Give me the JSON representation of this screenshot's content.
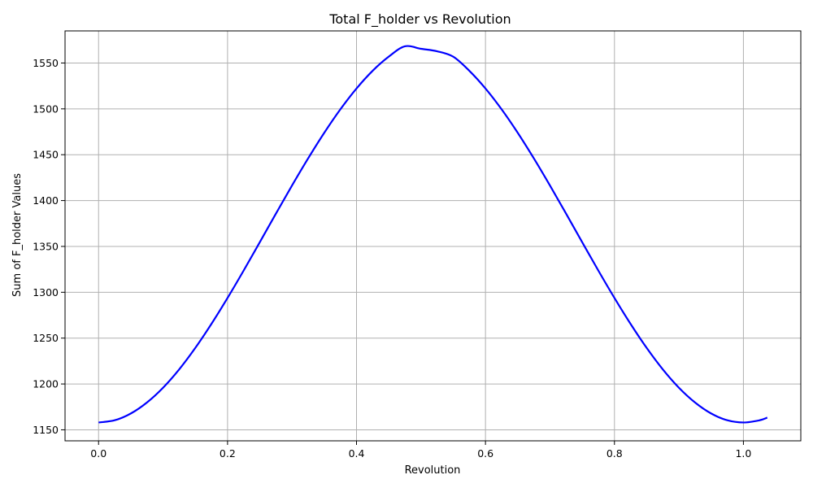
{
  "chart_data": {
    "type": "line",
    "title": "Total F_holder vs Revolution",
    "xlabel": "Revolution",
    "ylabel": "Sum of F_holder Values",
    "xlim": [
      -0.052,
      1.089
    ],
    "ylim": [
      1138,
      1585
    ],
    "xticks": [
      0.0,
      0.2,
      0.4,
      0.6,
      0.8,
      1.0
    ],
    "xtick_labels": [
      "0.0",
      "0.2",
      "0.4",
      "0.6",
      "0.8",
      "1.0"
    ],
    "yticks": [
      1150,
      1200,
      1250,
      1300,
      1350,
      1400,
      1450,
      1500,
      1550
    ],
    "ytick_labels": [
      "1150",
      "1200",
      "1250",
      "1300",
      "1350",
      "1400",
      "1450",
      "1500",
      "1550"
    ],
    "grid": true,
    "legend": "none",
    "series": [
      {
        "color": "#0000ff",
        "x": [
          0.0,
          0.025,
          0.05,
          0.075,
          0.1,
          0.125,
          0.15,
          0.175,
          0.2,
          0.225,
          0.25,
          0.275,
          0.3,
          0.325,
          0.35,
          0.375,
          0.4,
          0.425,
          0.45,
          0.475,
          0.5,
          0.525,
          0.55,
          0.575,
          0.6,
          0.625,
          0.65,
          0.675,
          0.7,
          0.725,
          0.75,
          0.775,
          0.8,
          0.825,
          0.85,
          0.875,
          0.9,
          0.925,
          0.95,
          0.975,
          1.0,
          1.025,
          1.037
        ],
        "y": [
          1158.0,
          1160.4,
          1167.8,
          1179.8,
          1195.9,
          1215.9,
          1239.3,
          1265.5,
          1293.8,
          1323.7,
          1354.6,
          1385.7,
          1416.4,
          1446.0,
          1473.9,
          1499.5,
          1522.2,
          1541.5,
          1556.9,
          1568.2,
          1565.5,
          1562.8,
          1556.9,
          1541.5,
          1522.2,
          1499.5,
          1473.9,
          1446.0,
          1416.4,
          1385.7,
          1354.6,
          1323.7,
          1293.8,
          1265.5,
          1239.3,
          1215.9,
          1195.9,
          1179.8,
          1167.8,
          1160.4,
          1158.0,
          1160.4,
          1163.3
        ]
      }
    ]
  }
}
